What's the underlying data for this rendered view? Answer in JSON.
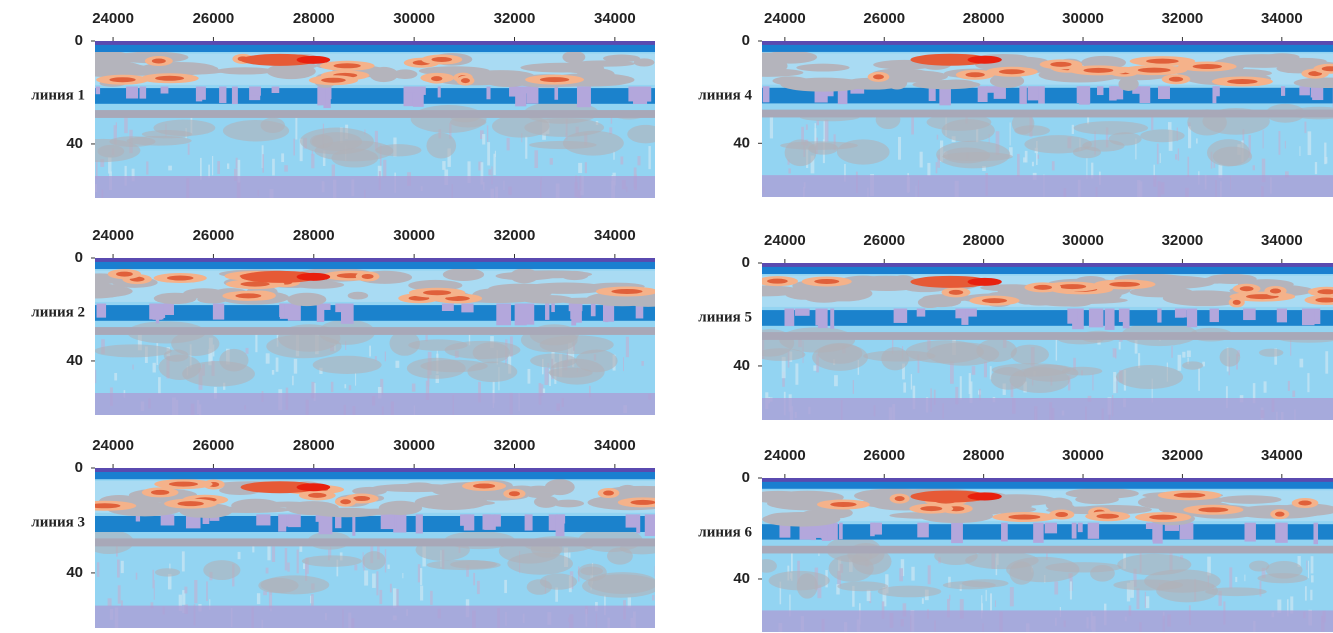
{
  "chart_data": [
    {
      "type": "section",
      "label": "линия 1",
      "xlim": [
        23640,
        34800
      ],
      "xticks": [
        24000,
        26000,
        28000,
        30000,
        32000,
        34000
      ],
      "ylim": [
        0,
        61
      ],
      "yticks": [
        0,
        40
      ]
    },
    {
      "type": "section",
      "label": "линия 2",
      "xlim": [
        23640,
        34800
      ],
      "xticks": [
        24000,
        26000,
        28000,
        30000,
        32000,
        34000
      ],
      "ylim": [
        0,
        61
      ],
      "yticks": [
        0,
        40
      ]
    },
    {
      "type": "section",
      "label": "линия 3",
      "xlim": [
        23640,
        34800
      ],
      "xticks": [
        24000,
        26000,
        28000,
        30000,
        32000,
        34000
      ],
      "ylim": [
        0,
        61
      ],
      "yticks": [
        0,
        40
      ]
    },
    {
      "type": "section",
      "label": "линия 4",
      "xlim": [
        23540,
        35030
      ],
      "xticks": [
        24000,
        26000,
        28000,
        30000,
        32000,
        34000
      ],
      "ylim": [
        0,
        61
      ],
      "yticks": [
        0,
        40
      ]
    },
    {
      "type": "section",
      "label": "линия 5",
      "xlim": [
        23540,
        35030
      ],
      "xticks": [
        24000,
        26000,
        28000,
        30000,
        32000,
        34000
      ],
      "ylim": [
        0,
        61
      ],
      "yticks": [
        0,
        40
      ]
    },
    {
      "type": "section",
      "label": "линия 6",
      "xlim": [
        23540,
        35030
      ],
      "xticks": [
        24000,
        26000,
        28000,
        30000,
        32000,
        34000
      ],
      "ylim": [
        0,
        61
      ],
      "yticks": [
        0,
        40
      ]
    }
  ]
}
